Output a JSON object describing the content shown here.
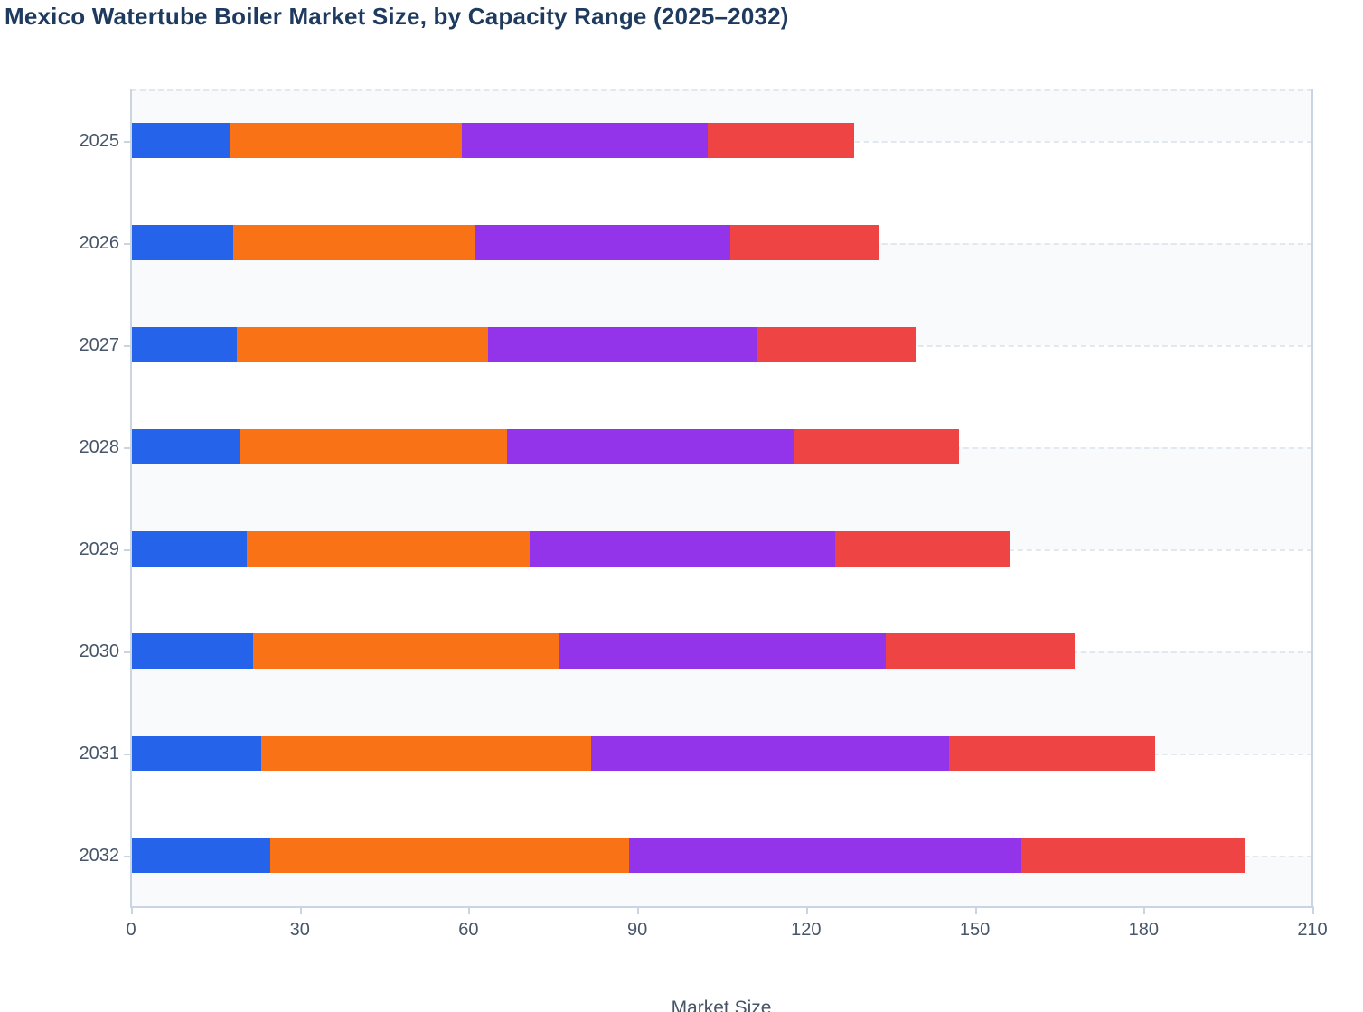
{
  "title": "Mexico Watertube Boiler Market Size, by Capacity Range (2025–2032)",
  "colors": {
    "title_text": "#1e3a5f",
    "axis_label_text": "#475569",
    "tick_and_spine": "#cbd5e1",
    "gridline": "#e2e8f0",
    "row_stripe": "#f8fafc",
    "background": "#ffffff",
    "series_blue": "#2563eb",
    "series_orange": "#f97316",
    "series_purple": "#9333ea",
    "series_red": "#ef4444"
  },
  "x_axis": {
    "label": "Market Size",
    "tick_labels": [
      "0",
      "30",
      "60",
      "90",
      "120",
      "150",
      "180",
      "210"
    ],
    "range": [
      0,
      210
    ]
  },
  "y_axis": {
    "categories": [
      "2025",
      "2026",
      "2027",
      "2028",
      "2029",
      "2030",
      "2031",
      "2032"
    ]
  },
  "chart_data": {
    "type": "bar",
    "orientation": "horizontal",
    "stacked": true,
    "title": "Mexico Watertube Boiler Market Size, by Capacity Range (2025–2032)",
    "xlabel": "Market Size",
    "ylabel": "",
    "xlim": [
      0,
      210
    ],
    "x_ticks": [
      0,
      30,
      60,
      90,
      120,
      150,
      180,
      210
    ],
    "grid": "dashed horizontal gridlines at each category, alternating row stripes",
    "legend_visible": false,
    "categories": [
      "2025",
      "2026",
      "2027",
      "2028",
      "2029",
      "2030",
      "2031",
      "2032"
    ],
    "series": [
      {
        "name": "blue",
        "color": "#2563eb",
        "values": [
          17.6,
          18.2,
          18.8,
          19.5,
          20.5,
          21.7,
          23.2,
          24.7
        ]
      },
      {
        "name": "orange",
        "color": "#f97316",
        "values": [
          41.2,
          42.9,
          44.7,
          47.4,
          50.3,
          54.3,
          58.6,
          63.9
        ]
      },
      {
        "name": "purple",
        "color": "#9333ea",
        "values": [
          43.7,
          45.5,
          47.8,
          50.8,
          54.3,
          58.2,
          63.6,
          69.7
        ]
      },
      {
        "name": "red",
        "color": "#ef4444",
        "values": [
          26.0,
          26.5,
          28.4,
          29.5,
          31.2,
          33.6,
          36.6,
          39.7
        ]
      }
    ],
    "stack_totals": [
      128.5,
      133.1,
      139.7,
      147.2,
      156.3,
      167.8,
      182.0,
      198.0
    ]
  }
}
